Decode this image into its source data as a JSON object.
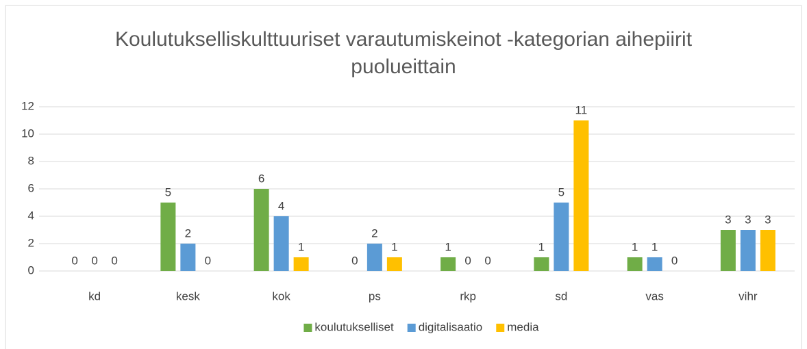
{
  "chart_data": {
    "type": "bar",
    "title": "Koulutukselliskulttuuriset varautumiskeinot -kategorian aihepiirit puolueittain",
    "categories": [
      "kd",
      "kesk",
      "kok",
      "ps",
      "rkp",
      "sd",
      "vas",
      "vihr"
    ],
    "series": [
      {
        "name": "koulutukselliset",
        "color": "#70ad47",
        "values": [
          0,
          5,
          6,
          0,
          1,
          1,
          1,
          3
        ]
      },
      {
        "name": "digitalisaatio",
        "color": "#5b9bd5",
        "values": [
          0,
          2,
          4,
          2,
          0,
          5,
          1,
          3
        ]
      },
      {
        "name": "media",
        "color": "#ffc000",
        "values": [
          0,
          0,
          1,
          1,
          0,
          11,
          0,
          3
        ]
      }
    ],
    "ylim": [
      0,
      12
    ],
    "yticks": [
      0,
      2,
      4,
      6,
      8,
      10,
      12
    ],
    "grid": true,
    "legend": "bottom"
  }
}
